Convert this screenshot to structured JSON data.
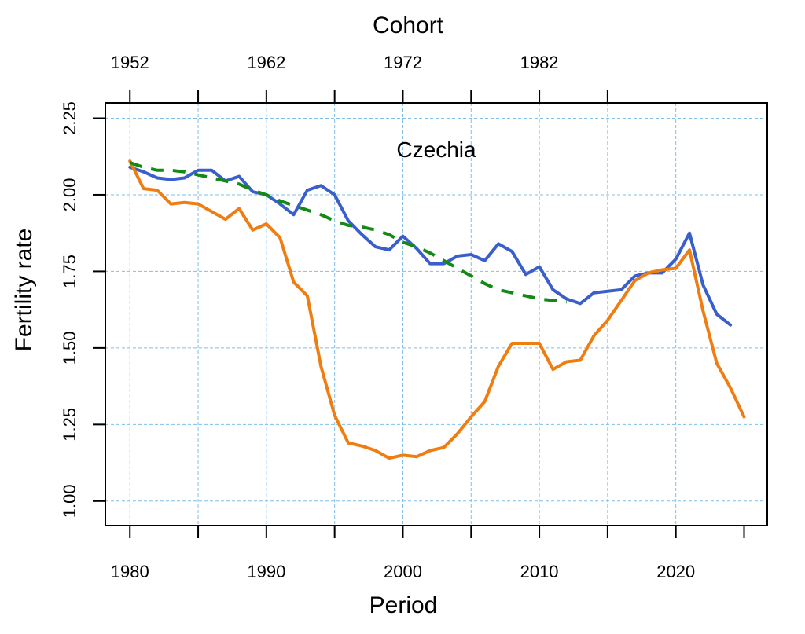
{
  "chart_data": {
    "type": "line",
    "annotation": "Czechia",
    "xlabel": "Period",
    "ylabel": "Fertility rate",
    "top_axis_label": "Cohort",
    "xlim": [
      1978.2,
      2026.7
    ],
    "ylim": [
      0.92,
      2.3
    ],
    "x_ticks": [
      1980,
      1985,
      1990,
      1995,
      2000,
      2005,
      2010,
      2015,
      2020,
      2025
    ],
    "x_tick_labels": [
      "1980",
      "1990",
      "2000",
      "2010",
      "2020"
    ],
    "x_tick_label_values": [
      1980,
      1990,
      2000,
      2010,
      2020
    ],
    "y_ticks": [
      1.0,
      1.25,
      1.5,
      1.75,
      2.0,
      2.25
    ],
    "y_tick_labels": [
      "1.00",
      "1.25",
      "1.50",
      "1.75",
      "2.00",
      "2.25"
    ],
    "top_ticks": [
      1980,
      1985,
      1990,
      1995,
      2000,
      2005,
      2010,
      2015
    ],
    "top_tick_labels": [
      "1952",
      "1962",
      "1972",
      "1982"
    ],
    "top_tick_label_values": [
      1980,
      1990,
      2000,
      2010
    ],
    "grid": true,
    "colors": {
      "grid": "#7fbfea",
      "axis": "#000000"
    },
    "series": [
      {
        "color": "#3a5fcd",
        "style": "solid",
        "x": [
          1980,
          1981,
          1982,
          1983,
          1984,
          1985,
          1986,
          1987,
          1988,
          1989,
          1990,
          1991,
          1992,
          1993,
          1994,
          1995,
          1996,
          1997,
          1998,
          1999,
          2000,
          2001,
          2002,
          2003,
          2004,
          2005,
          2006,
          2007,
          2008,
          2009,
          2010,
          2011,
          2012,
          2013,
          2014,
          2015,
          2016,
          2017,
          2018,
          2019,
          2020,
          2021,
          2022,
          2023,
          2024
        ],
        "values": [
          2.09,
          2.075,
          2.055,
          2.05,
          2.055,
          2.08,
          2.08,
          2.045,
          2.06,
          2.01,
          2.0,
          1.97,
          1.935,
          2.015,
          2.03,
          2.0,
          1.915,
          1.87,
          1.83,
          1.82,
          1.865,
          1.825,
          1.775,
          1.775,
          1.8,
          1.805,
          1.785,
          1.84,
          1.815,
          1.74,
          1.765,
          1.69,
          1.66,
          1.645,
          1.68,
          1.685,
          1.69,
          1.735,
          1.745,
          1.745,
          1.79,
          1.875,
          1.705,
          1.61,
          1.575
        ]
      },
      {
        "color": "#f07d12",
        "style": "solid",
        "x": [
          1980,
          1981,
          1982,
          1983,
          1984,
          1985,
          1986,
          1987,
          1988,
          1989,
          1990,
          1991,
          1992,
          1993,
          1994,
          1995,
          1996,
          1997,
          1998,
          1999,
          2000,
          2001,
          2002,
          2003,
          2004,
          2005,
          2006,
          2007,
          2008,
          2009,
          2010,
          2011,
          2012,
          2013,
          2014,
          2015,
          2016,
          2017,
          2018,
          2019,
          2020,
          2021,
          2022,
          2023,
          2024,
          2025
        ],
        "values": [
          2.11,
          2.02,
          2.015,
          1.97,
          1.975,
          1.97,
          1.945,
          1.92,
          1.955,
          1.885,
          1.905,
          1.86,
          1.715,
          1.67,
          1.44,
          1.28,
          1.19,
          1.18,
          1.165,
          1.14,
          1.15,
          1.145,
          1.165,
          1.175,
          1.22,
          1.275,
          1.325,
          1.44,
          1.515,
          1.515,
          1.515,
          1.43,
          1.455,
          1.46,
          1.54,
          1.59,
          1.655,
          1.72,
          1.745,
          1.755,
          1.76,
          1.82,
          1.62,
          1.45,
          1.37,
          1.275
        ]
      },
      {
        "color": "#138a13",
        "style": "dashed",
        "x": [
          1980,
          1981,
          1982,
          1983,
          1984,
          1985,
          1986,
          1987,
          1988,
          1989,
          1990,
          1991,
          1992,
          1993,
          1994,
          1995,
          1996,
          1997,
          1998,
          1999,
          2000,
          2001,
          2002,
          2003,
          2004,
          2005,
          2006,
          2007,
          2008,
          2009,
          2010,
          2011,
          2012
        ],
        "values": [
          2.105,
          2.09,
          2.08,
          2.08,
          2.075,
          2.065,
          2.055,
          2.045,
          2.035,
          2.015,
          2.0,
          1.98,
          1.965,
          1.95,
          1.935,
          1.915,
          1.9,
          1.895,
          1.885,
          1.87,
          1.845,
          1.83,
          1.81,
          1.785,
          1.76,
          1.735,
          1.71,
          1.69,
          1.68,
          1.67,
          1.66,
          1.655,
          1.65
        ]
      }
    ]
  }
}
